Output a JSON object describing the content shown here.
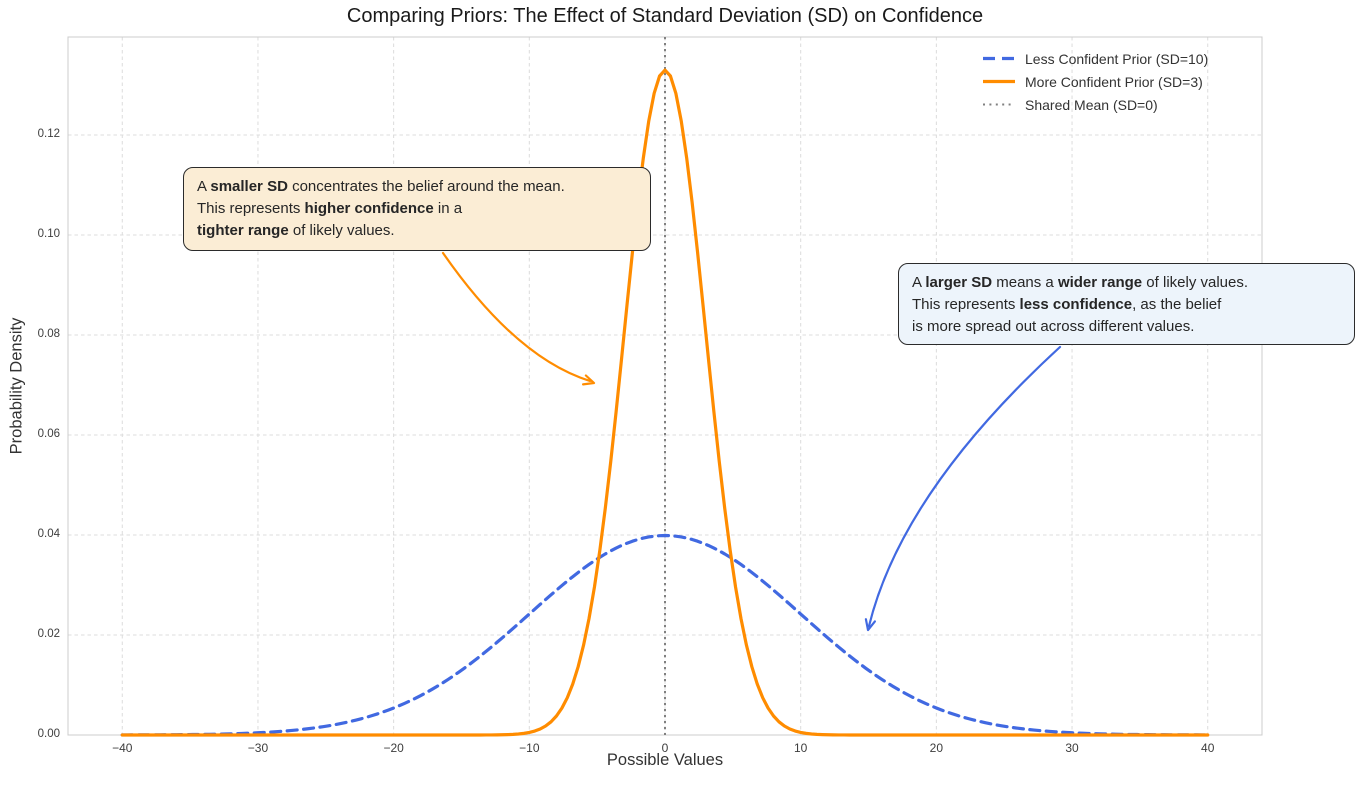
{
  "chart_data": {
    "type": "line",
    "title": "Comparing Priors: The Effect of Standard Deviation (SD) on Confidence",
    "xlabel": "Possible Values",
    "ylabel": "Probability Density",
    "xlim": [
      -44,
      44
    ],
    "ylim": [
      0,
      0.1396
    ],
    "grid": true,
    "legend_position": "upper right",
    "xticks": {
      "values": [
        -40,
        -30,
        -20,
        -10,
        0,
        10,
        20,
        30,
        40
      ],
      "labels": [
        "−40",
        "−30",
        "−20",
        "−10",
        "0",
        "10",
        "20",
        "30",
        "40"
      ]
    },
    "yticks": {
      "values": [
        0,
        0.02,
        0.04,
        0.06,
        0.08,
        0.1,
        0.12
      ],
      "labels": [
        "0.00",
        "0.02",
        "0.04",
        "0.06",
        "0.08",
        "0.10",
        "0.12"
      ]
    },
    "series": [
      {
        "name": "Less Confident Prior (SD=10)",
        "distribution": "normal",
        "mean": 0,
        "sd": 10,
        "x_range": [
          -40,
          40
        ],
        "peak_density": 0.0399,
        "color": "#4169E1",
        "style": "dashed",
        "linewidth": 3.2
      },
      {
        "name": "More Confident Prior (SD=3)",
        "distribution": "normal",
        "mean": 0,
        "sd": 3,
        "x_range": [
          -40,
          40
        ],
        "peak_density": 0.133,
        "color": "#FF8C00",
        "style": "solid",
        "linewidth": 3.2
      }
    ],
    "mean_line": {
      "name": "Shared Mean (SD=0)",
      "x": 0,
      "color": "#808080",
      "style": "dotted",
      "linewidth": 2
    }
  },
  "annotations": [
    {
      "id": "smaller-sd",
      "fill": "#FBEDD5",
      "border": "#2B2B2B",
      "arrow": {
        "color": "#FF8C00",
        "target_data": {
          "x": -5.2,
          "y": 0.07
        }
      },
      "lines": [
        [
          {
            "t": "A "
          },
          {
            "t": "smaller SD",
            "b": true
          },
          {
            "t": " concentrates the belief around the mean."
          }
        ],
        [
          {
            "t": "This represents "
          },
          {
            "t": "higher confidence",
            "b": true
          },
          {
            "t": " in a"
          }
        ],
        [
          {
            "t": "tighter range",
            "b": true
          },
          {
            "t": " of likely values."
          }
        ]
      ]
    },
    {
      "id": "larger-sd",
      "fill": "#EDF4FB",
      "border": "#2B2B2B",
      "arrow": {
        "color": "#4169E1",
        "target_data": {
          "x": 15,
          "y": 0.021
        }
      },
      "lines": [
        [
          {
            "t": "A "
          },
          {
            "t": "larger SD",
            "b": true
          },
          {
            "t": " means a "
          },
          {
            "t": "wider range",
            "b": true
          },
          {
            "t": " of likely values."
          }
        ],
        [
          {
            "t": "This represents "
          },
          {
            "t": "less confidence",
            "b": true
          },
          {
            "t": ", as the belief"
          }
        ],
        [
          {
            "t": "is more spread out across different values."
          }
        ]
      ]
    }
  ]
}
